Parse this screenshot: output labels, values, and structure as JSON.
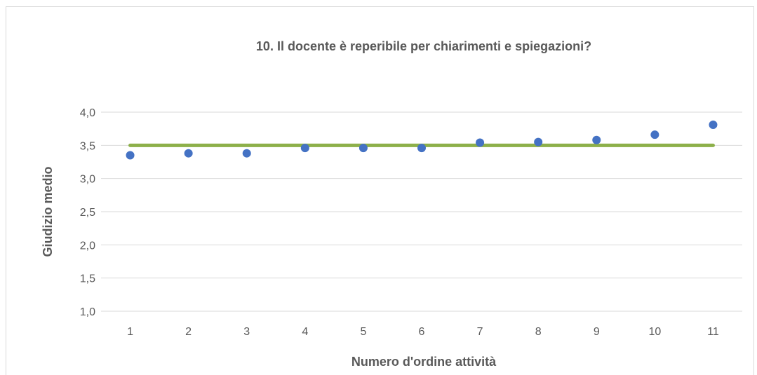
{
  "chart_data": {
    "type": "scatter",
    "title": "10. Il docente è reperibile per chiarimenti e spiegazioni?",
    "xlabel": "Numero d'ordine attività",
    "ylabel": "Giudizio medio",
    "categories": [
      "1",
      "2",
      "3",
      "4",
      "5",
      "6",
      "7",
      "8",
      "9",
      "10",
      "11"
    ],
    "y_ticks": [
      "1,0",
      "1,5",
      "2,0",
      "2,5",
      "3,0",
      "3,5",
      "4,0"
    ],
    "ylim": [
      1.0,
      4.0
    ],
    "grid": true,
    "legend": "none",
    "series": [
      {
        "type": "scatter",
        "values": [
          3.35,
          3.38,
          3.38,
          3.46,
          3.46,
          3.46,
          3.54,
          3.55,
          3.58,
          3.66,
          3.81
        ],
        "color": "#4472C4"
      },
      {
        "type": "line",
        "values": [
          3.5,
          3.5,
          3.5,
          3.5,
          3.5,
          3.5,
          3.5,
          3.5,
          3.5,
          3.5,
          3.5
        ],
        "color": "#8DB04A"
      }
    ]
  }
}
